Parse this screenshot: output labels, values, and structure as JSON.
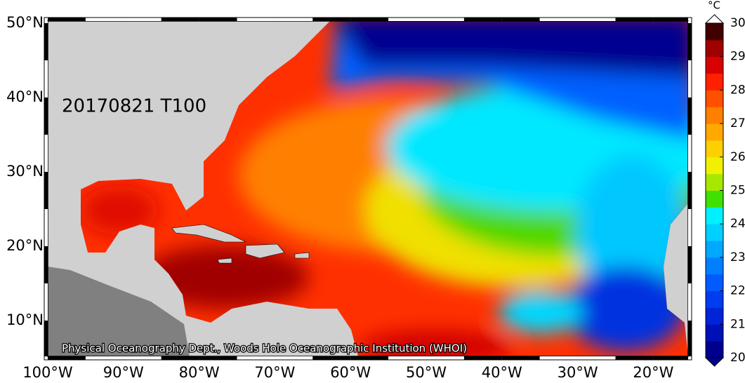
{
  "map": {
    "label": "20170821 T100",
    "credit": "Physical Oceanography Dept., Woods Hole Oceanographic Institution (WHOI)",
    "latitude_labels": [
      "50°N",
      "40°N",
      "30°N",
      "20°N",
      "10°N"
    ],
    "longitude_labels": [
      "100°W",
      "90°W",
      "80°W",
      "70°W",
      "60°W",
      "50°W",
      "40°W",
      "30°W",
      "20°W"
    ]
  },
  "colorbar": {
    "unit": "°C",
    "ticks": [
      20,
      21,
      22,
      23,
      24,
      25,
      26,
      27,
      28,
      29,
      30
    ],
    "colors": [
      "#000090",
      "#0010b8",
      "#0024d8",
      "#003cf0",
      "#005cff",
      "#0080ff",
      "#00a8ff",
      "#00d0ff",
      "#00f0ff",
      "#40e000",
      "#a8e800",
      "#f0f000",
      "#ffd000",
      "#ffa800",
      "#ff8000",
      "#ff5000",
      "#ff2000",
      "#d80000",
      "#a00000",
      "#400000"
    ]
  }
}
